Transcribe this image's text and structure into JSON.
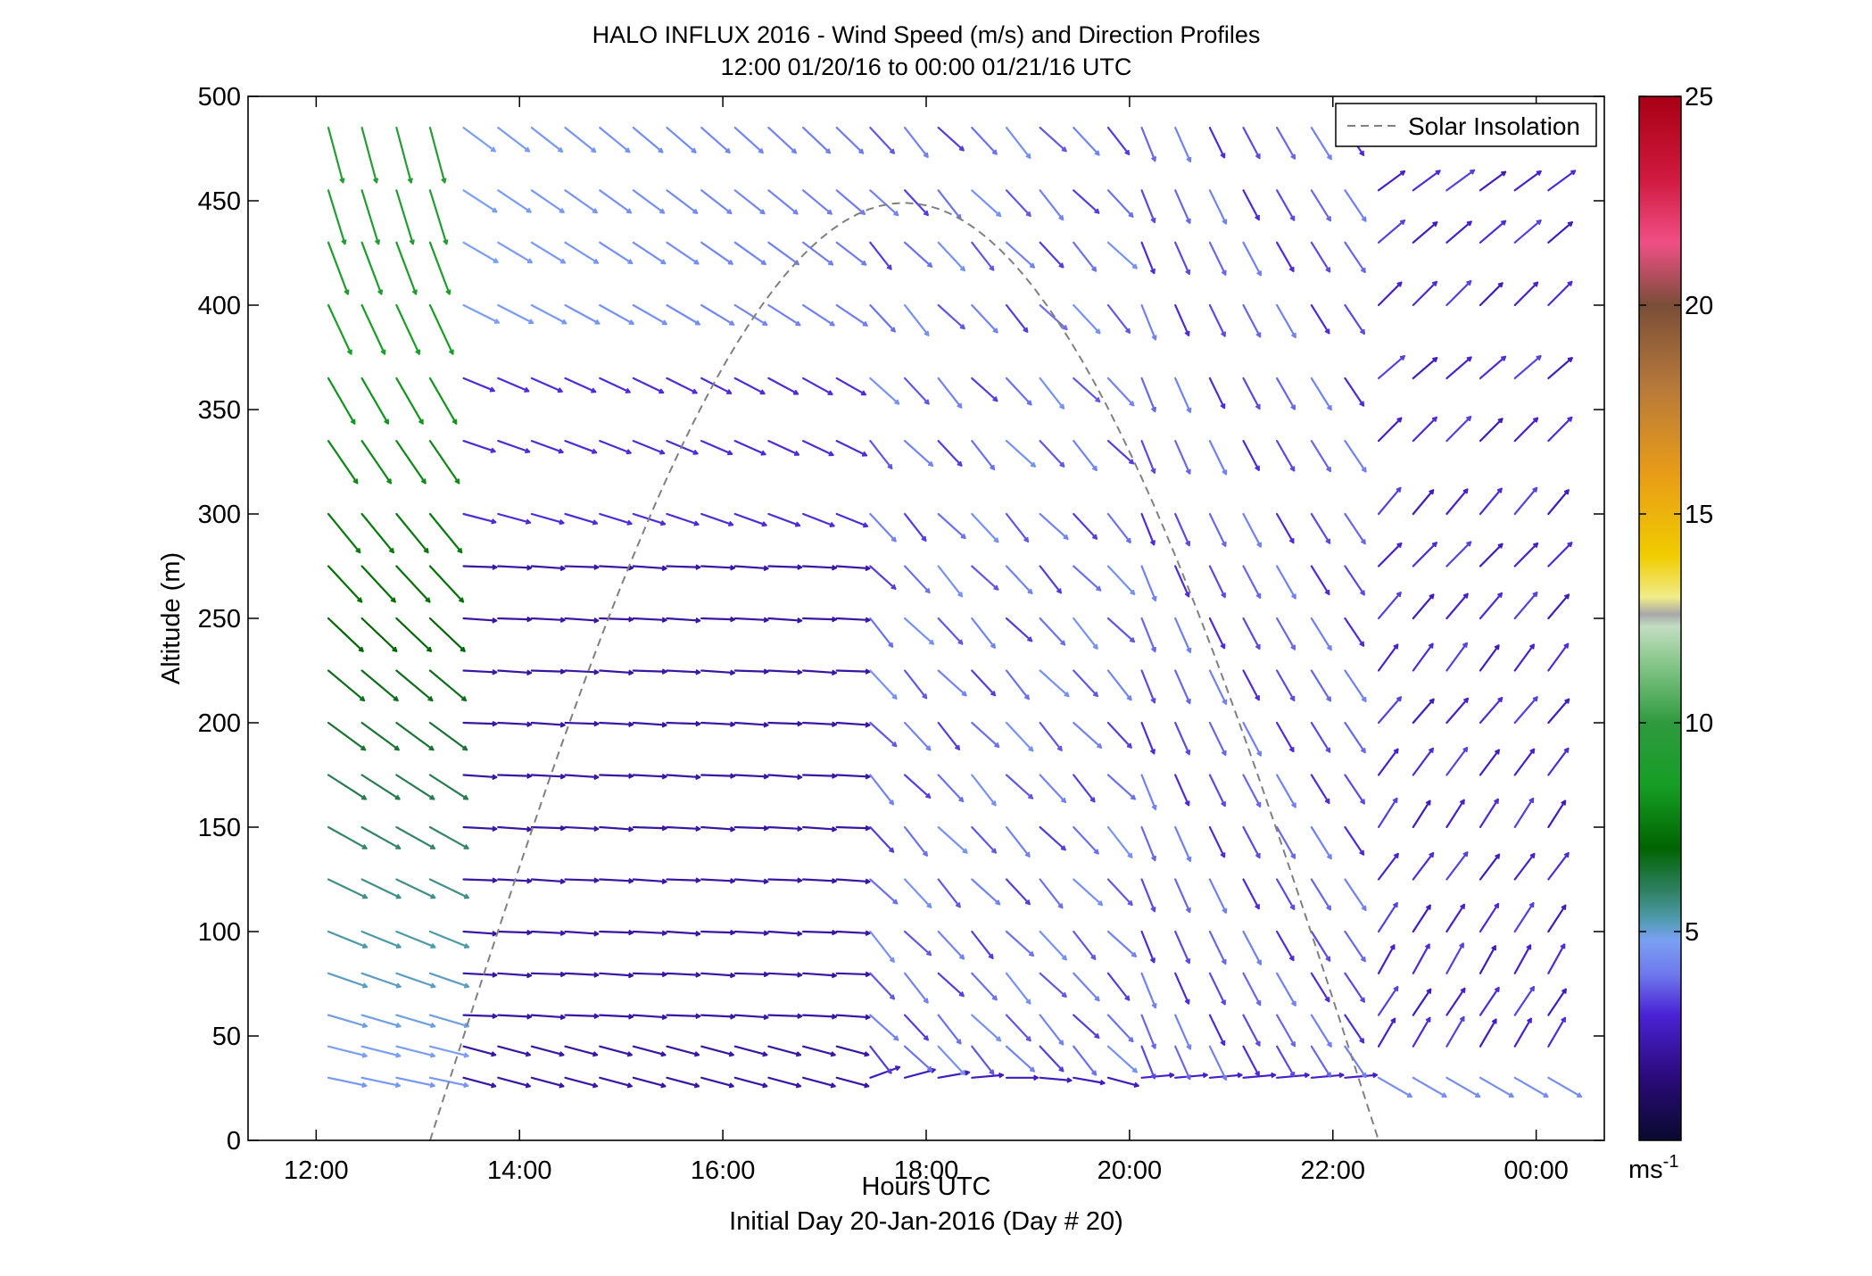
{
  "chart_data": {
    "type": "quiver",
    "title": "HALO INFLUX 2016 - Wind Speed (m/s) and Direction Profiles",
    "subtitle": "12:00 01/20/16 to 00:00 01/21/16  UTC",
    "xlabel": "Hours UTC",
    "xlabel2": "Initial Day 20-Jan-2016 (Day # 20)",
    "ylabel": "Altitude (m)",
    "x_range_hours": [
      11.33,
      24.67
    ],
    "ylim": [
      0,
      500
    ],
    "x_ticks": [
      {
        "value": 12,
        "label": "12:00"
      },
      {
        "value": 14,
        "label": "14:00"
      },
      {
        "value": 16,
        "label": "16:00"
      },
      {
        "value": 18,
        "label": "18:00"
      },
      {
        "value": 20,
        "label": "20:00"
      },
      {
        "value": 22,
        "label": "22:00"
      },
      {
        "value": 24,
        "label": "00:00"
      }
    ],
    "y_ticks": [
      0,
      50,
      100,
      150,
      200,
      250,
      300,
      350,
      400,
      450,
      500
    ],
    "grid": false,
    "legend": {
      "placement": "top-right",
      "entries": [
        {
          "label": "Solar Insolation",
          "style": "dashed",
          "color": "#808080"
        }
      ]
    },
    "colorbar": {
      "min": 0,
      "max": 25,
      "ticks": [
        5,
        10,
        15,
        20,
        25
      ],
      "unit_label": "ms",
      "unit_exponent": "-1",
      "stops": [
        {
          "v": 0,
          "c": "#0a0a2e"
        },
        {
          "v": 1.5,
          "c": "#2a0a7a"
        },
        {
          "v": 3,
          "c": "#4a22d4"
        },
        {
          "v": 4,
          "c": "#6f7aec"
        },
        {
          "v": 4.8,
          "c": "#7aa0f2"
        },
        {
          "v": 5.3,
          "c": "#4f9bae"
        },
        {
          "v": 6,
          "c": "#2f8060"
        },
        {
          "v": 7,
          "c": "#006400"
        },
        {
          "v": 8.5,
          "c": "#169e25"
        },
        {
          "v": 10,
          "c": "#2f9a3f"
        },
        {
          "v": 11.5,
          "c": "#8cc98e"
        },
        {
          "v": 12.3,
          "c": "#c2ddc2"
        },
        {
          "v": 12.6,
          "c": "#a8a8a8"
        },
        {
          "v": 13,
          "c": "#f0ec8a"
        },
        {
          "v": 14,
          "c": "#f0cc00"
        },
        {
          "v": 16,
          "c": "#e89b18"
        },
        {
          "v": 18,
          "c": "#b87a3a"
        },
        {
          "v": 20,
          "c": "#7a4e38"
        },
        {
          "v": 21.5,
          "c": "#f04f86"
        },
        {
          "v": 23,
          "c": "#d01a40"
        },
        {
          "v": 25,
          "c": "#a80014"
        }
      ]
    },
    "solar_insolation": {
      "start_hour": 13.12,
      "peak_hour": 17.79,
      "end_hour": 22.45,
      "peak_altitude": 449
    },
    "quiver_grid": {
      "times_hours": [
        12.12,
        12.45,
        12.79,
        13.12,
        13.45,
        13.79,
        14.12,
        14.45,
        14.79,
        15.12,
        15.45,
        15.79,
        16.12,
        16.45,
        16.79,
        17.12,
        17.45,
        17.79,
        18.12,
        18.45,
        18.79,
        19.12,
        19.45,
        19.79,
        20.12,
        20.45,
        20.79,
        21.12,
        21.45,
        21.79,
        22.12,
        22.45,
        22.79,
        23.12,
        23.45,
        23.79,
        24.12
      ],
      "altitudes_m": [
        30,
        45,
        60,
        80,
        100,
        125,
        150,
        175,
        200,
        225,
        250,
        275,
        300,
        335,
        365,
        400,
        430,
        455,
        485
      ],
      "note": "each vector: wind speed (m/s) and direction (degrees, meteorological from-direction); values estimated"
    }
  }
}
